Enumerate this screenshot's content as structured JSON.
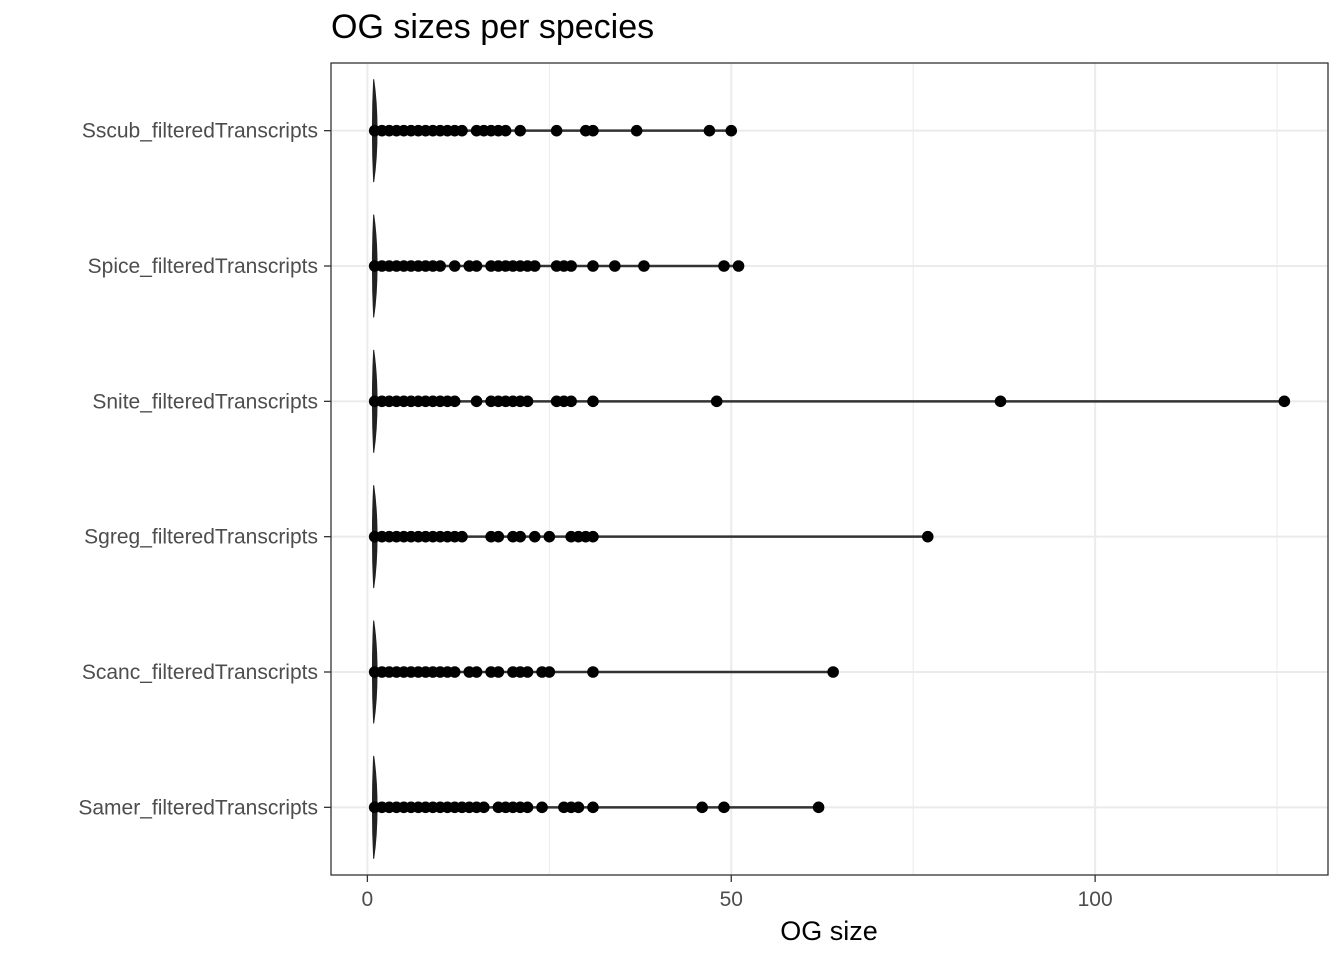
{
  "chart_data": {
    "type": "scatter",
    "title": "OG sizes per species",
    "xlabel": "OG size",
    "ylabel": "",
    "xlim": [
      -5,
      132
    ],
    "x_ticks": [
      0,
      50,
      100
    ],
    "x_tick_labels": [
      "0",
      "50",
      "100"
    ],
    "grid": true,
    "categories": [
      "Sscub_filteredTranscripts",
      "Spice_filteredTranscripts",
      "Snite_filteredTranscripts",
      "Sgreg_filteredTranscripts",
      "Scanc_filteredTranscripts",
      "Samer_filteredTranscripts"
    ],
    "series": [
      {
        "category": "Sscub_filteredTranscripts",
        "values": [
          1,
          2,
          3,
          4,
          5,
          6,
          7,
          8,
          9,
          10,
          11,
          12,
          13,
          15,
          16,
          17,
          18,
          19,
          21,
          26,
          30,
          31,
          37,
          47,
          50
        ]
      },
      {
        "category": "Spice_filteredTranscripts",
        "values": [
          1,
          2,
          3,
          4,
          5,
          6,
          7,
          8,
          9,
          10,
          12,
          14,
          15,
          17,
          18,
          19,
          20,
          21,
          22,
          23,
          26,
          27,
          28,
          31,
          34,
          38,
          49,
          51
        ]
      },
      {
        "category": "Snite_filteredTranscripts",
        "values": [
          1,
          2,
          3,
          4,
          5,
          6,
          7,
          8,
          9,
          10,
          11,
          12,
          15,
          17,
          18,
          19,
          20,
          21,
          22,
          26,
          27,
          28,
          31,
          48,
          87,
          126
        ]
      },
      {
        "category": "Sgreg_filteredTranscripts",
        "values": [
          1,
          2,
          3,
          4,
          5,
          6,
          7,
          8,
          9,
          10,
          11,
          12,
          13,
          17,
          18,
          20,
          21,
          23,
          25,
          28,
          29,
          30,
          31,
          77
        ]
      },
      {
        "category": "Scanc_filteredTranscripts",
        "values": [
          1,
          2,
          3,
          4,
          5,
          6,
          7,
          8,
          9,
          10,
          11,
          12,
          14,
          15,
          17,
          18,
          20,
          21,
          22,
          24,
          25,
          31,
          64
        ]
      },
      {
        "category": "Samer_filteredTranscripts",
        "values": [
          1,
          2,
          3,
          4,
          5,
          6,
          7,
          8,
          9,
          10,
          11,
          12,
          13,
          14,
          15,
          16,
          18,
          19,
          20,
          21,
          22,
          24,
          27,
          28,
          29,
          31,
          46,
          49,
          62
        ]
      }
    ],
    "colors": {
      "points": "#000000",
      "line": "#333333",
      "grid": "#ebebeb",
      "panel_border": "#333333"
    }
  }
}
